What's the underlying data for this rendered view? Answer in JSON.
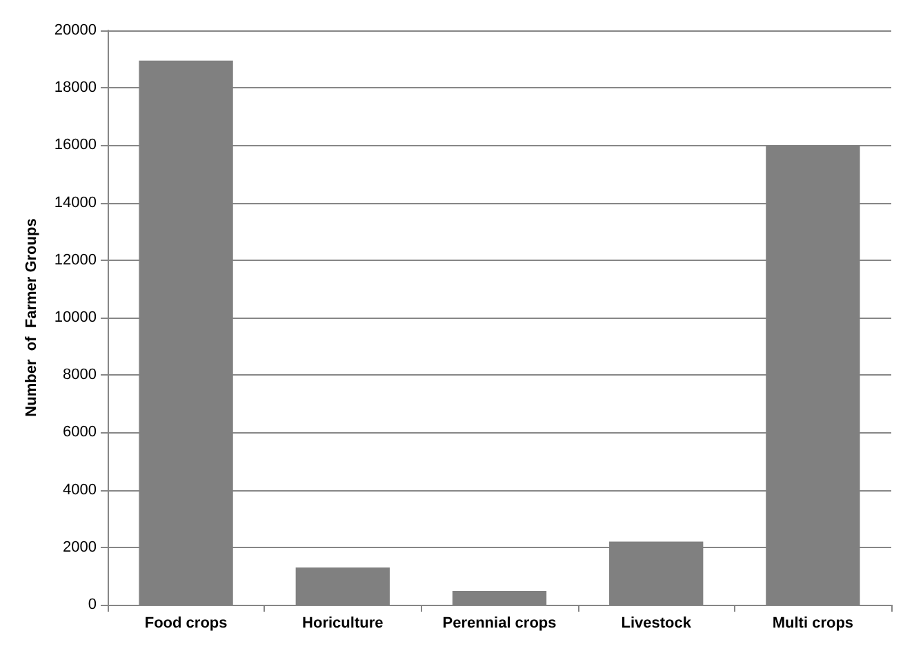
{
  "chart_data": {
    "type": "bar",
    "ylabel": "Number  of  Farmer Groups",
    "categories": [
      "Food crops",
      "Horiculture",
      "Perennial crops",
      "Livestock",
      "Multi crops"
    ],
    "values": [
      18950,
      1300,
      480,
      2200,
      16000
    ],
    "color": "#808080",
    "ylim": [
      0,
      20000
    ],
    "yticks": [
      0,
      2000,
      4000,
      6000,
      8000,
      10000,
      12000,
      14000,
      16000,
      18000,
      20000
    ],
    "grid": "y"
  }
}
